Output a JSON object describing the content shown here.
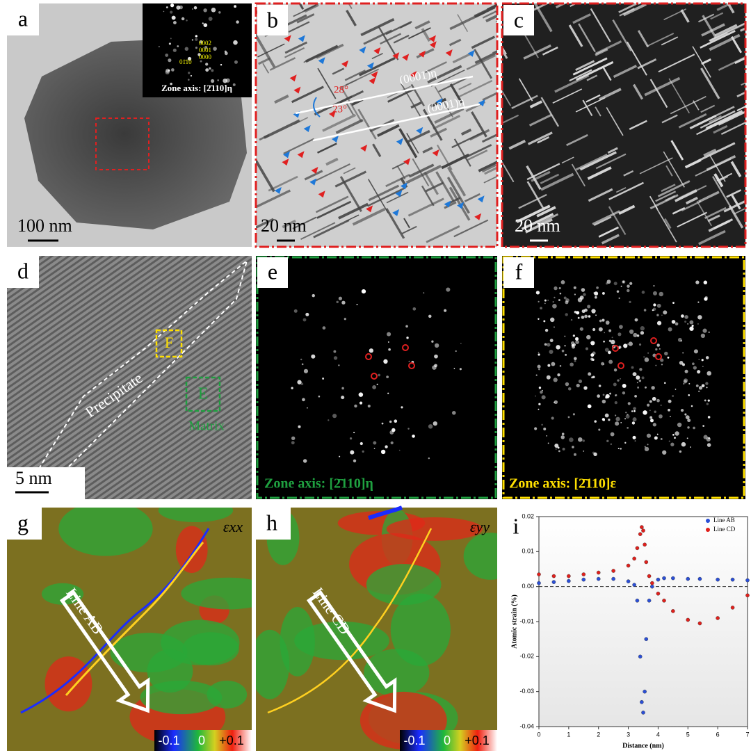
{
  "panels": {
    "a": {
      "label": "a",
      "scale_bar": "100 nm",
      "inset_zone_axis": "Zone axis: [2̄110]η",
      "inset_spots": [
        "0002",
        "0001",
        "01̄10",
        "0000"
      ]
    },
    "b": {
      "label": "b",
      "scale_bar": "20 nm",
      "planes": [
        "(0001)η",
        "(0001)η"
      ],
      "angles": [
        "28°",
        "23°"
      ]
    },
    "c": {
      "label": "c",
      "scale_bar": "20 nm"
    },
    "d": {
      "label": "d",
      "scale_bar": "5 nm",
      "regions": [
        "Precipitate",
        "Matrix"
      ],
      "boxes": [
        "F",
        "E"
      ]
    },
    "e": {
      "label": "e",
      "zone_axis": "Zone axis: [2̄110]η"
    },
    "f": {
      "label": "f",
      "zone_axis": "Zone axis: [2̄110]ε"
    },
    "g": {
      "label": "g",
      "component": "εxx",
      "line": "Line AB",
      "colorbar": [
        "-0.1",
        "0",
        "+0.1"
      ]
    },
    "h": {
      "label": "h",
      "component": "εyy",
      "line": "Line CD",
      "colorbar": [
        "-0.1",
        "0",
        "+0.1"
      ]
    },
    "i": {
      "label": "i"
    }
  },
  "chart_data": {
    "type": "scatter",
    "xlabel": "Distance (nm)",
    "ylabel": "Atomic strain (%)",
    "x": [
      0,
      0.5,
      1,
      1.5,
      2,
      2.5,
      3,
      3.2,
      3.3,
      3.4,
      3.45,
      3.5,
      3.55,
      3.6,
      3.7,
      3.8,
      4,
      4.2,
      4.5,
      5,
      5.4,
      6,
      6.5,
      7
    ],
    "series": [
      {
        "name": "Line AB",
        "color": "#2b4fd6",
        "values": [
          0.001,
          0.0013,
          0.0016,
          0.002,
          0.0022,
          0.0022,
          0.0015,
          0.0005,
          -0.004,
          -0.02,
          -0.033,
          -0.036,
          -0.03,
          -0.015,
          -0.004,
          0,
          0.002,
          0.0024,
          0.0024,
          0.0022,
          0.0022,
          0.002,
          0.002,
          0.0018
        ]
      },
      {
        "name": "Line CD",
        "color": "#e0201c",
        "values": [
          0.0035,
          0.003,
          0.003,
          0.0035,
          0.004,
          0.0045,
          0.006,
          0.008,
          0.011,
          0.015,
          0.017,
          0.016,
          0.012,
          0.007,
          0.003,
          0.001,
          -0.002,
          -0.004,
          -0.007,
          -0.0095,
          -0.0105,
          -0.009,
          -0.006,
          -0.0025
        ]
      }
    ],
    "xlim": [
      0,
      7
    ],
    "xticks": [
      0,
      1,
      2,
      3,
      4,
      5,
      6,
      7
    ],
    "ylim": [
      -0.04,
      0.02
    ],
    "yticks": [
      -0.04,
      -0.03,
      -0.02,
      -0.01,
      {
        "value": 0,
        "label": "0.00"
      },
      0.01,
      0.02
    ],
    "legend": "upper right"
  }
}
